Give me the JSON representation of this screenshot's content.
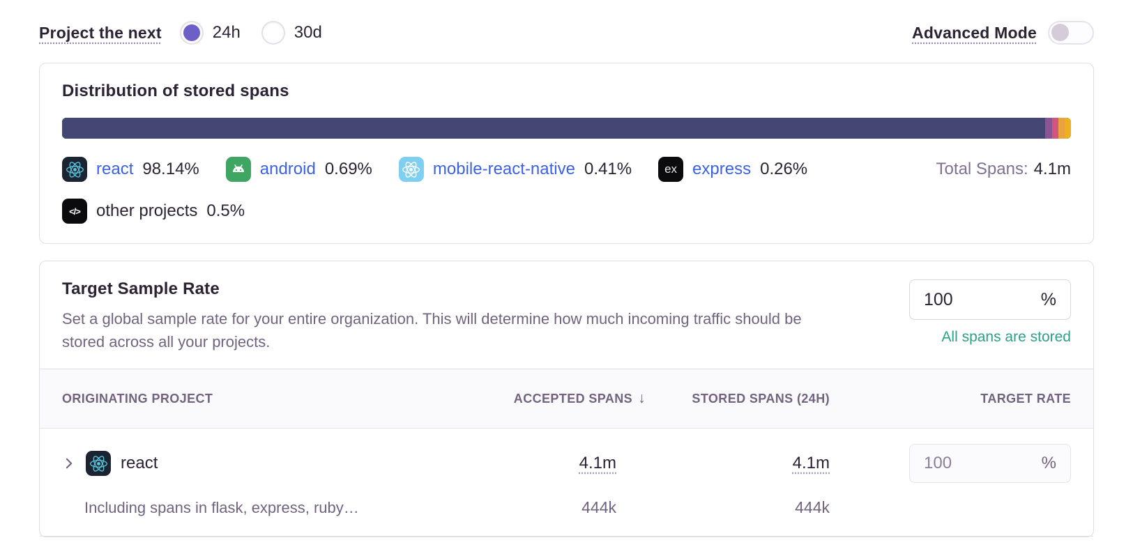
{
  "controls": {
    "project_next_label": "Project the next",
    "periods": [
      {
        "label": "24h",
        "selected": true
      },
      {
        "label": "30d",
        "selected": false
      }
    ],
    "advanced_mode_label": "Advanced Mode",
    "advanced_mode_enabled": false
  },
  "distribution": {
    "title": "Distribution of stored spans",
    "total_label": "Total Spans:",
    "total_value": "4.1m",
    "segments": [
      {
        "name": "react",
        "pct": 98.14,
        "color": "#444674"
      },
      {
        "name": "android",
        "pct": 0.69,
        "color": "#8D5494"
      },
      {
        "name": "mobile-react-native",
        "pct": 0.41,
        "color": "#D4537F"
      },
      {
        "name": "express",
        "pct": 0.26,
        "color": "#E8A33D"
      },
      {
        "name": "other-projects",
        "pct": 0.5,
        "color": "#EDB01F"
      }
    ],
    "legend": [
      {
        "label": "react",
        "value": "98.14%"
      },
      {
        "label": "android",
        "value": "0.69%"
      },
      {
        "label": "mobile-react-native",
        "value": "0.41%"
      },
      {
        "label": "express",
        "value": "0.26%"
      },
      {
        "label": "other projects",
        "value": "0.5%"
      }
    ]
  },
  "sample_rate": {
    "title": "Target Sample Rate",
    "description": "Set a global sample rate for your entire organization. This will determine how much incoming traffic should be stored across all your projects.",
    "input_value": "100",
    "input_unit": "%",
    "status_text": "All spans are stored"
  },
  "table": {
    "headers": {
      "project": "Originating Project",
      "accepted": "Accepted Spans",
      "stored": "Stored Spans (24h)",
      "rate": "Target Rate"
    },
    "sort_icon": "↓",
    "rows": [
      {
        "project": "react",
        "accepted": "4.1m",
        "stored": "4.1m",
        "rate_value": "100",
        "rate_unit": "%",
        "sub_label": "Including spans in flask, express, ruby…",
        "sub_accepted": "444k",
        "sub_stored": "444k"
      }
    ]
  }
}
